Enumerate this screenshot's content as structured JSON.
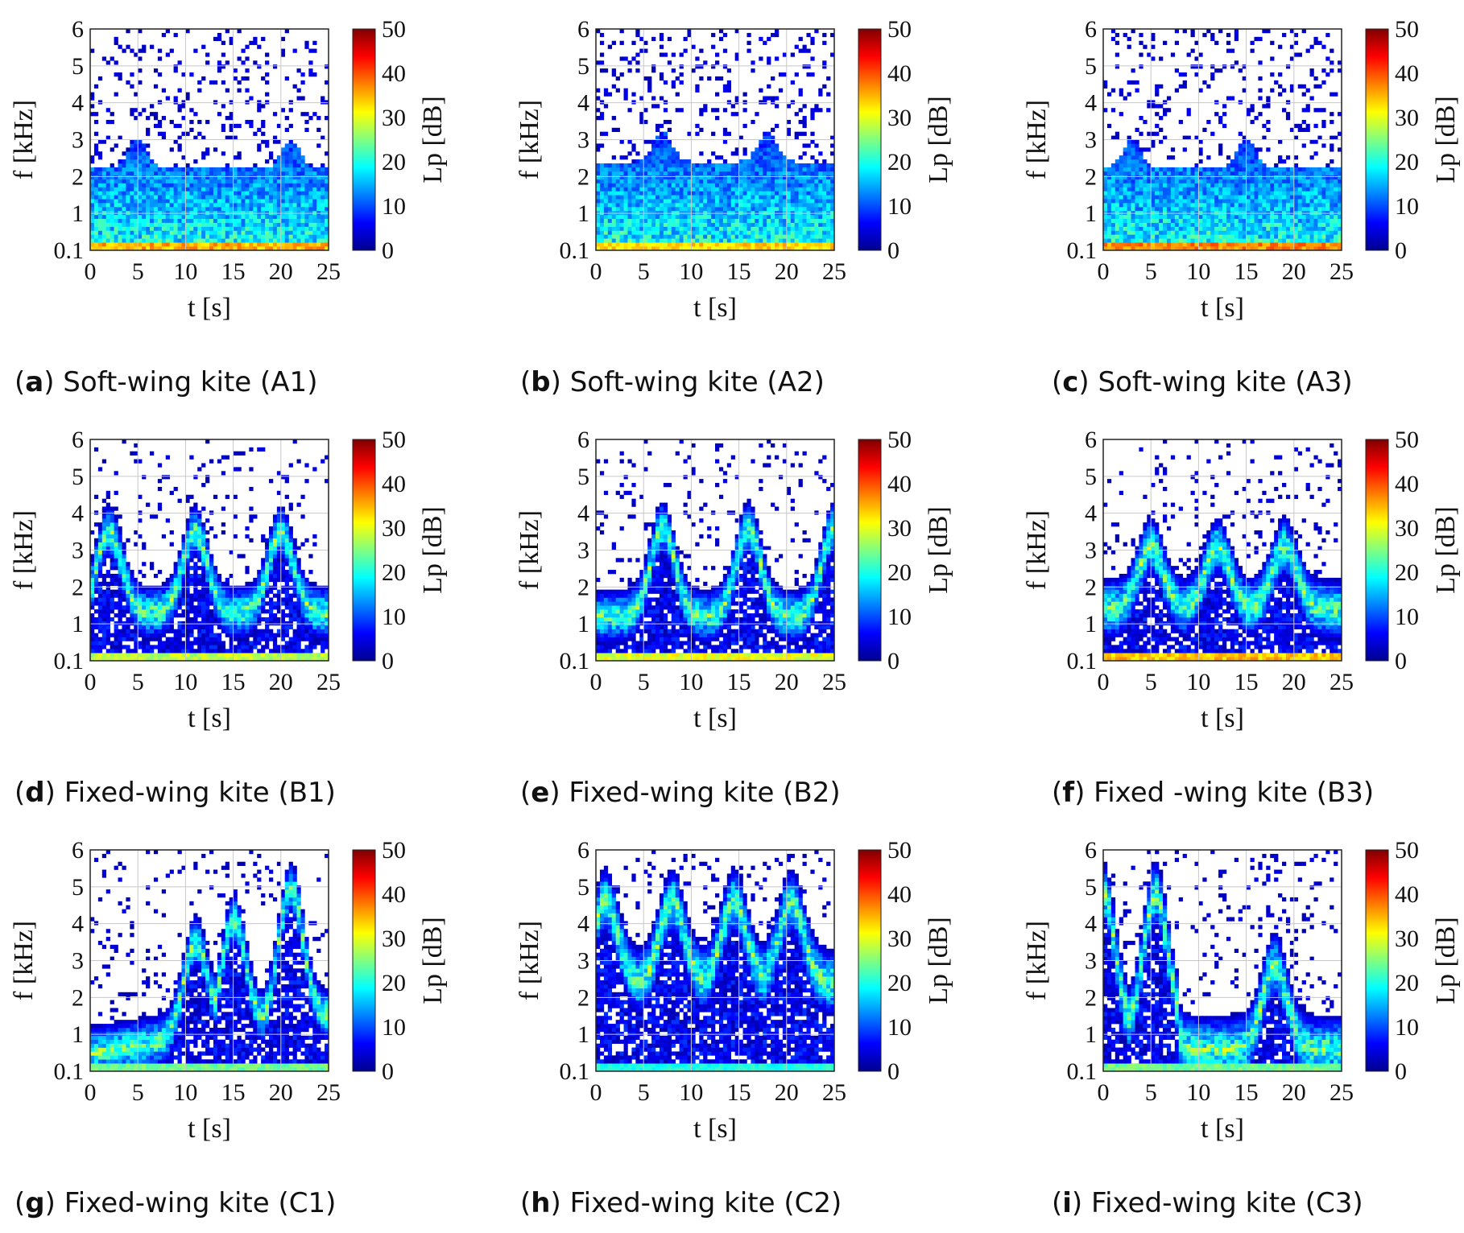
{
  "figure": {
    "colorbar": {
      "label": "Lp [dB]",
      "ticks": [
        0,
        10,
        20,
        30,
        40,
        50
      ],
      "range": [
        0,
        50
      ],
      "colormap": [
        "#00008f",
        "#0000ff",
        "#0080ff",
        "#00ffff",
        "#80ff80",
        "#ffff00",
        "#ff8000",
        "#ff0000",
        "#800000"
      ]
    },
    "panels": [
      {
        "letter": "a",
        "caption": "Soft-wing kite (A1)"
      },
      {
        "letter": "b",
        "caption": "Soft-wing kite (A2)"
      },
      {
        "letter": "c",
        "caption": "Soft-wing kite (A3)"
      },
      {
        "letter": "d",
        "caption": "Fixed-wing kite (B1)"
      },
      {
        "letter": "e",
        "caption": "Fixed-wing kite (B2)"
      },
      {
        "letter": "f",
        "caption": "Fixed -wing kite (B3)"
      },
      {
        "letter": "g",
        "caption": "Fixed-wing kite (C1)"
      },
      {
        "letter": "h",
        "caption": "Fixed-wing kite (C2)"
      },
      {
        "letter": "i",
        "caption": "Fixed-wing kite (C3)"
      }
    ]
  },
  "chart_data": [
    {
      "type": "heatmap",
      "title": "Soft-wing kite (A1)",
      "xlabel": "t [s]",
      "ylabel": "f [kHz]",
      "xlim": [
        0,
        25
      ],
      "ylim": [
        0.1,
        6
      ],
      "xticks": [
        "0",
        "5",
        "10",
        "15",
        "20",
        "25"
      ],
      "yticks": [
        "0.1",
        "1",
        "2",
        "3",
        "4",
        "5",
        "6"
      ],
      "colorbar_label": "Lp [dB]",
      "clim": [
        0,
        50
      ],
      "pattern": "broadband",
      "band_upper_khz": 2.2,
      "peak_times_s": [
        5,
        21
      ],
      "low_freq_level_db": 35
    },
    {
      "type": "heatmap",
      "title": "Soft-wing kite (A2)",
      "xlabel": "t [s]",
      "ylabel": "f [kHz]",
      "xlim": [
        0,
        25
      ],
      "ylim": [
        0.1,
        6
      ],
      "xticks": [
        "0",
        "5",
        "10",
        "15",
        "20",
        "25"
      ],
      "yticks": [
        "0.1",
        "1",
        "2",
        "3",
        "4",
        "5",
        "6"
      ],
      "colorbar_label": "Lp [dB]",
      "clim": [
        0,
        50
      ],
      "pattern": "broadband",
      "band_upper_khz": 2.4,
      "peak_times_s": [
        7,
        18
      ],
      "low_freq_level_db": 33
    },
    {
      "type": "heatmap",
      "title": "Soft-wing kite (A3)",
      "xlabel": "t [s]",
      "ylabel": "f [kHz]",
      "xlim": [
        0,
        25
      ],
      "ylim": [
        0.1,
        6
      ],
      "xticks": [
        "0",
        "5",
        "10",
        "15",
        "20",
        "25"
      ],
      "yticks": [
        "0.1",
        "1",
        "2",
        "3",
        "4",
        "5",
        "6"
      ],
      "colorbar_label": "Lp [dB]",
      "clim": [
        0,
        50
      ],
      "pattern": "broadband",
      "band_upper_khz": 2.2,
      "peak_times_s": [
        3,
        15
      ],
      "low_freq_level_db": 37
    },
    {
      "type": "heatmap",
      "title": "Fixed-wing kite (B1)",
      "xlabel": "t [s]",
      "ylabel": "f [kHz]",
      "xlim": [
        0,
        25
      ],
      "ylim": [
        0.1,
        6
      ],
      "xticks": [
        "0",
        "5",
        "10",
        "15",
        "20",
        "25"
      ],
      "yticks": [
        "0.1",
        "1",
        "2",
        "3",
        "4",
        "5",
        "6"
      ],
      "colorbar_label": "Lp [dB]",
      "clim": [
        0,
        50
      ],
      "pattern": "periodic",
      "band_base_khz": 1.3,
      "band_width_khz": 0.8,
      "peak_times_s": [
        2,
        11,
        20
      ],
      "peak_freq_khz": 3.5,
      "low_freq_level_db": 28
    },
    {
      "type": "heatmap",
      "title": "Fixed-wing kite (B2)",
      "xlabel": "t [s]",
      "ylabel": "f [kHz]",
      "xlim": [
        0,
        25
      ],
      "ylim": [
        0.1,
        6
      ],
      "xticks": [
        "0",
        "5",
        "10",
        "15",
        "20",
        "25"
      ],
      "yticks": [
        "0.1",
        "1",
        "2",
        "3",
        "4",
        "5",
        "6"
      ],
      "colorbar_label": "Lp [dB]",
      "clim": [
        0,
        50
      ],
      "pattern": "periodic",
      "band_base_khz": 1.2,
      "band_width_khz": 0.8,
      "peak_times_s": [
        7,
        16,
        25
      ],
      "peak_freq_khz": 3.6,
      "low_freq_level_db": 30
    },
    {
      "type": "heatmap",
      "title": "Fixed -wing kite (B3)",
      "xlabel": "t [s]",
      "ylabel": "f [kHz]",
      "xlim": [
        0,
        25
      ],
      "ylim": [
        0.1,
        6
      ],
      "xticks": [
        "0",
        "5",
        "10",
        "15",
        "20",
        "25"
      ],
      "yticks": [
        "0.1",
        "1",
        "2",
        "3",
        "4",
        "5",
        "6"
      ],
      "colorbar_label": "Lp [dB]",
      "clim": [
        0,
        50
      ],
      "pattern": "periodic",
      "band_base_khz": 1.4,
      "band_width_khz": 0.9,
      "peak_times_s": [
        5,
        12,
        19
      ],
      "peak_freq_khz": 3.1,
      "low_freq_level_db": 34
    },
    {
      "type": "heatmap",
      "title": "Fixed-wing kite (C1)",
      "xlabel": "t [s]",
      "ylabel": "f [kHz]",
      "xlim": [
        0,
        25
      ],
      "ylim": [
        0.1,
        6
      ],
      "xticks": [
        "0",
        "5",
        "10",
        "15",
        "20",
        "25"
      ],
      "yticks": [
        "0.1",
        "1",
        "2",
        "3",
        "4",
        "5",
        "6"
      ],
      "colorbar_label": "Lp [dB]",
      "clim": [
        0,
        50
      ],
      "pattern": "rising",
      "band_base_khz": 1.0,
      "band_width_khz": 0.8,
      "peak_times_s": [
        11,
        15,
        21
      ],
      "peak_freq_khz": 3.7,
      "low_freq_level_db": 24
    },
    {
      "type": "heatmap",
      "title": "Fixed-wing kite (C2)",
      "xlabel": "t [s]",
      "ylabel": "f [kHz]",
      "xlim": [
        0,
        25
      ],
      "ylim": [
        0.1,
        6
      ],
      "xticks": [
        "0",
        "5",
        "10",
        "15",
        "20",
        "25"
      ],
      "yticks": [
        "0.1",
        "1",
        "2",
        "3",
        "4",
        "5",
        "6"
      ],
      "colorbar_label": "Lp [dB]",
      "clim": [
        0,
        50
      ],
      "pattern": "periodic",
      "band_base_khz": 2.4,
      "band_width_khz": 1.0,
      "peak_times_s": [
        1,
        8,
        14.5,
        20.5
      ],
      "peak_freq_khz": 4.6,
      "low_freq_level_db": 20
    },
    {
      "type": "heatmap",
      "title": "Fixed-wing kite (C3)",
      "xlabel": "t [s]",
      "ylabel": "f [kHz]",
      "xlim": [
        0,
        25
      ],
      "ylim": [
        0.1,
        6
      ],
      "xticks": [
        "0",
        "5",
        "10",
        "15",
        "20",
        "25"
      ],
      "yticks": [
        "0.1",
        "1",
        "2",
        "3",
        "4",
        "5",
        "6"
      ],
      "colorbar_label": "Lp [dB]",
      "clim": [
        0,
        50
      ],
      "pattern": "decay",
      "band_base_khz": 1.0,
      "band_width_khz": 1.0,
      "peak_times_s": [
        0,
        5.5,
        18
      ],
      "peak_freq_khz": 4.8,
      "low_freq_level_db": 24
    }
  ]
}
